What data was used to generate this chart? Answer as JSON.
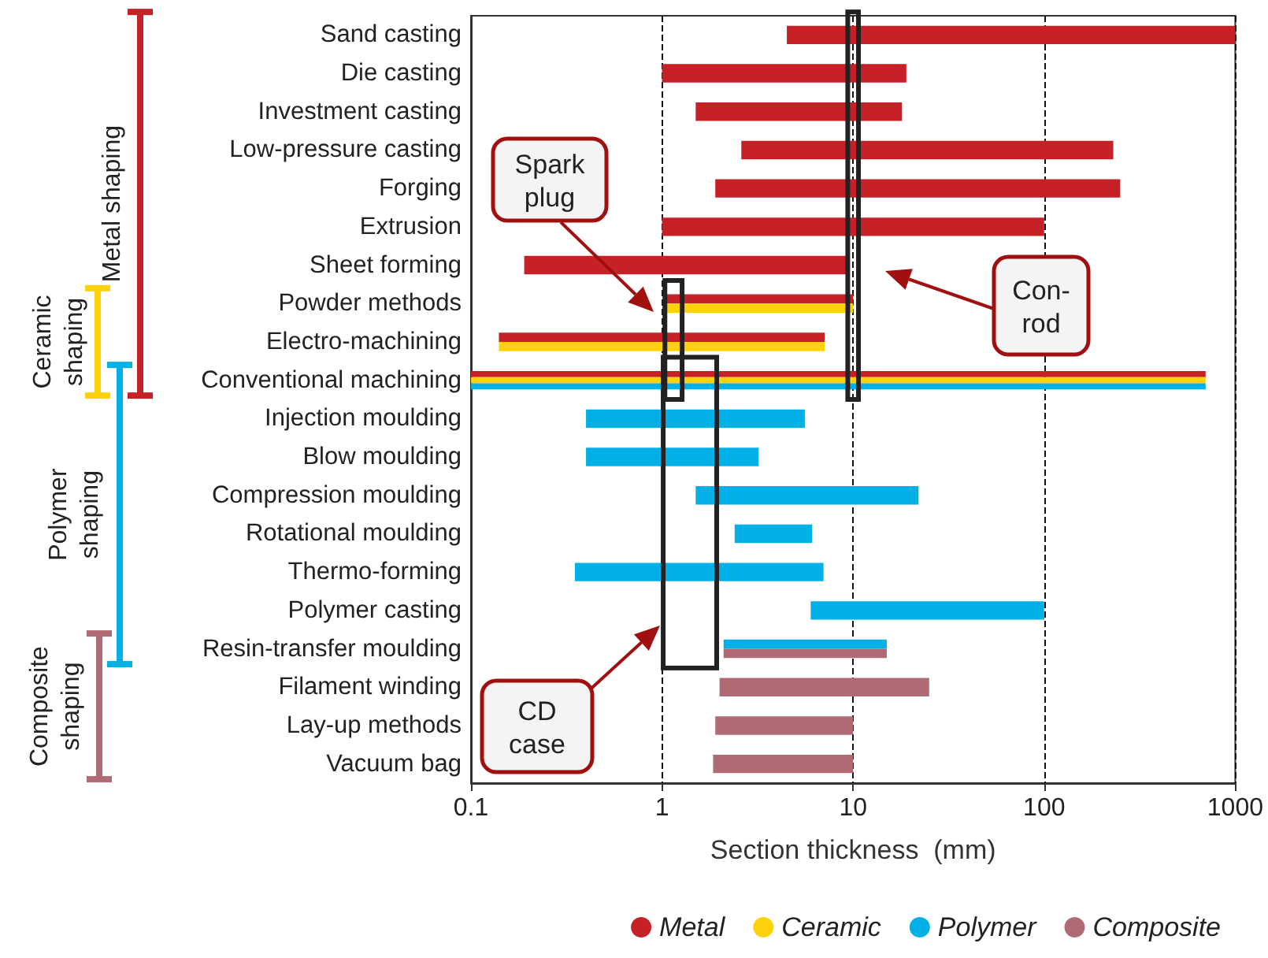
{
  "chart_data": {
    "type": "bar",
    "orientation": "horizontal",
    "xlabel": "Section thickness  (mm)",
    "log": "x",
    "xlim": [
      0.1,
      1000
    ],
    "xticks": [
      0.1,
      1,
      10,
      100,
      1000
    ],
    "grid": "x",
    "legend": "bottom right",
    "categories": [
      "Sand casting",
      "Die casting",
      "Investment casting",
      "Low-pressure casting",
      "Forging",
      "Extrusion",
      "Sheet forming",
      "Powder methods",
      "Electro-machining",
      "Conventional machining",
      "Injection moulding",
      "Blow moulding",
      "Compression moulding",
      "Rotational moulding",
      "Thermo-forming",
      "Polymer casting",
      "Resin-transfer moulding",
      "Filament winding",
      "Lay-up methods",
      "Vacuum bag"
    ],
    "series": [
      {
        "name": "Metal",
        "color": "#c62127",
        "base": [
          4.5,
          1,
          1.5,
          2.6,
          1.9,
          1,
          0.19,
          1.05,
          0.14,
          0.1,
          null,
          null,
          null,
          null,
          null,
          null,
          null,
          null,
          null,
          null
        ],
        "values": [
          995.5,
          18,
          16.5,
          227.4,
          248.1,
          99,
          9.31,
          8.95,
          6.96,
          699.9,
          null,
          null,
          null,
          null,
          null,
          null,
          null,
          null,
          null,
          null
        ]
      },
      {
        "name": "Ceramic",
        "color": "#fdd20a",
        "base": [
          null,
          null,
          null,
          null,
          null,
          null,
          null,
          1.05,
          0.14,
          0.1,
          null,
          null,
          null,
          null,
          null,
          null,
          null,
          null,
          null,
          null
        ],
        "values": [
          null,
          null,
          null,
          null,
          null,
          null,
          null,
          8.95,
          6.96,
          699.9,
          null,
          null,
          null,
          null,
          null,
          null,
          null,
          null,
          null,
          null
        ]
      },
      {
        "name": "Polymer",
        "color": "#00b0e6",
        "base": [
          null,
          null,
          null,
          null,
          null,
          null,
          null,
          null,
          null,
          0.1,
          0.4,
          0.4,
          1.5,
          2.4,
          0.35,
          6,
          2.1,
          null,
          null,
          null
        ],
        "values": [
          null,
          null,
          null,
          null,
          null,
          null,
          null,
          null,
          null,
          699.9,
          5.2,
          2.8,
          20.5,
          3.7,
          6.65,
          94,
          12.9,
          null,
          null,
          null
        ]
      },
      {
        "name": "Composite",
        "color": "#b06a73",
        "base": [
          null,
          null,
          null,
          null,
          null,
          null,
          null,
          null,
          null,
          null,
          null,
          null,
          null,
          null,
          null,
          null,
          2.1,
          2,
          1.9,
          1.85
        ],
        "values": [
          null,
          null,
          null,
          null,
          null,
          null,
          null,
          null,
          null,
          null,
          null,
          null,
          null,
          null,
          null,
          null,
          12.9,
          23,
          8.1,
          8.15
        ]
      }
    ],
    "annotations": [
      "Metal shaping",
      "Ceramic shaping",
      "Polymer shaping",
      "Composite shaping",
      "Spark plug",
      "Con-rod",
      "CD case"
    ]
  }
}
